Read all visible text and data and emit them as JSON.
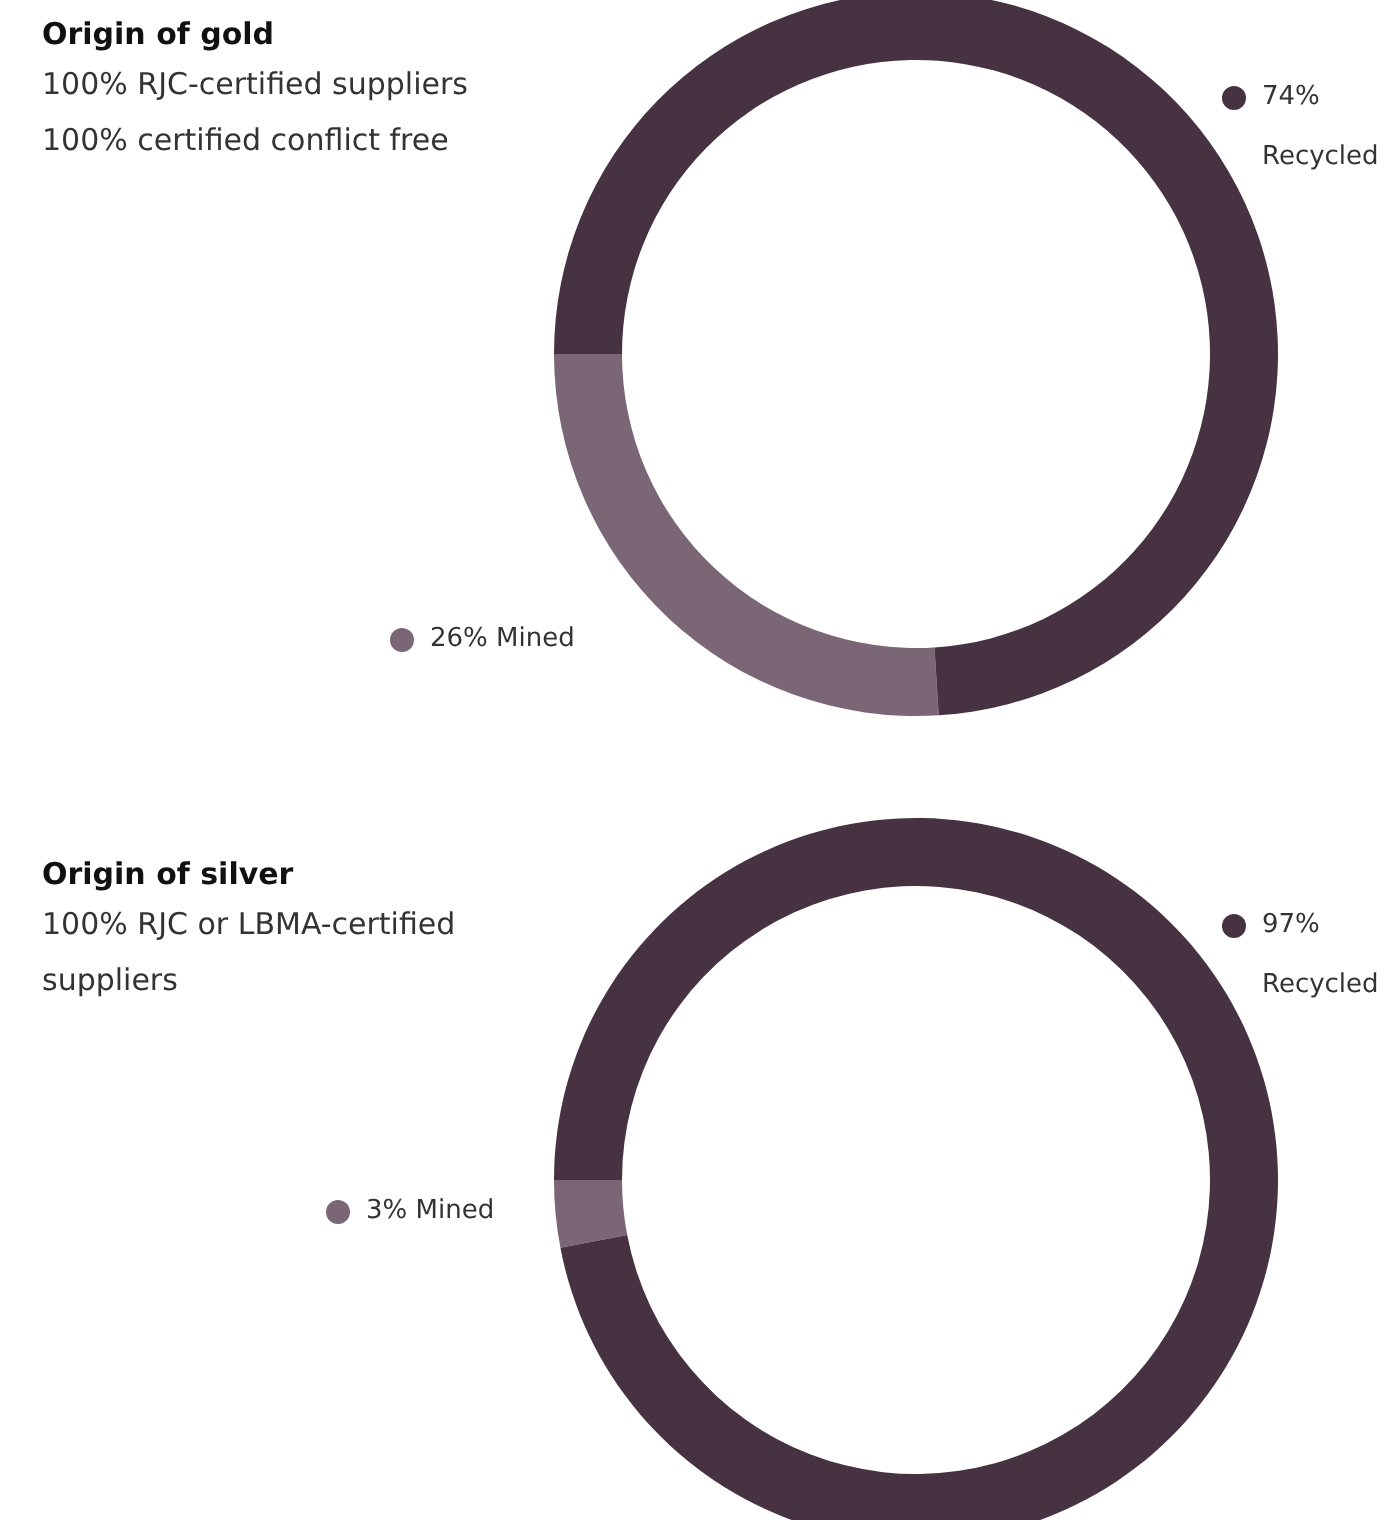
{
  "chart_data": [
    {
      "type": "donut",
      "title": "Origin of gold",
      "annotations": [
        "100% RJC-certified suppliers",
        "100% certified conflict free"
      ],
      "categories": [
        "Mined",
        "Recycled"
      ],
      "values": [
        26,
        74
      ],
      "value_labels": [
        "26%",
        "74%"
      ],
      "colors": [
        "#7b6676",
        "#473241"
      ]
    },
    {
      "type": "donut",
      "title": "Origin of silver",
      "annotations": [
        "100% RJC or LBMA-certified suppliers"
      ],
      "categories": [
        "Mined",
        "Recycled"
      ],
      "values": [
        3,
        97
      ],
      "value_labels": [
        "3%",
        "97%"
      ],
      "colors": [
        "#7b6676",
        "#473241"
      ]
    }
  ]
}
